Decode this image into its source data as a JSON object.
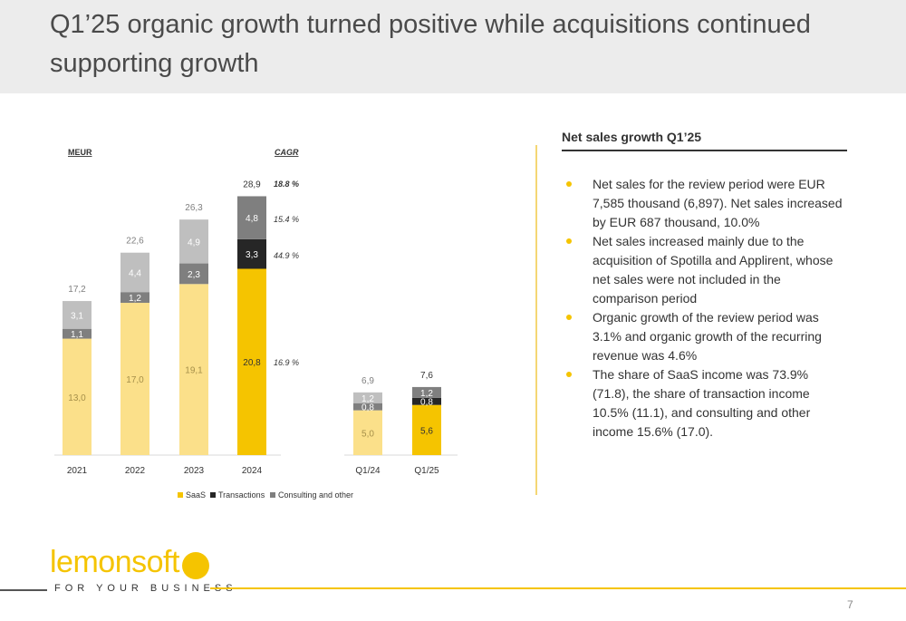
{
  "title": "Q1’25 organic growth turned positive while acquisitions continued supporting growth",
  "panel": {
    "title": "Net sales growth Q1’25",
    "bullets": [
      "Net sales for the review period were EUR 7,585 thousand (6,897). Net sales increased by EUR 687 thousand, 10.0%",
      "Net sales increased mainly due to the acquisition of Spotilla and Applirent, whose net sales were not included in the comparison period",
      "Organic growth of the review period was 3.1% and organic growth of the recurring revenue was 4.6%",
      "The share of SaaS income was 73.9% (71.8), the share of transaction income 10.5% (11.1), and consulting and other income 15.6% (17.0)."
    ]
  },
  "logo": {
    "brand": "lemonsoft",
    "tagline": "FOR YOUR BUSINESS"
  },
  "page_number": "7",
  "colors": {
    "saas_light": "#fbe08a",
    "saas_dark": "#f5c400",
    "transactions_light": "#7f7f7f",
    "transactions_dark": "#262626",
    "consulting_light": "#bfbfbf",
    "consulting_dark": "#7f7f7f"
  },
  "chart_data": {
    "type": "bar",
    "stacked": true,
    "unit_label": "MEUR",
    "cagr_label": "CAGR",
    "categories": [
      "2021",
      "2022",
      "2023",
      "2024",
      "Q1/24",
      "Q1/25"
    ],
    "series": [
      {
        "name": "SaaS",
        "values": [
          13.0,
          17.0,
          19.1,
          20.8,
          5.0,
          5.6
        ],
        "labels": [
          "13,0",
          "17,0",
          "19,1",
          "20,8",
          "5,0",
          "5,6"
        ]
      },
      {
        "name": "Transactions",
        "values": [
          1.1,
          1.2,
          2.3,
          3.3,
          0.8,
          0.8
        ],
        "labels": [
          "1,1",
          "1,2",
          "2,3",
          "3,3",
          "0,8",
          "0,8"
        ]
      },
      {
        "name": "Consulting and other",
        "values": [
          3.1,
          4.4,
          4.9,
          4.8,
          1.2,
          1.2
        ],
        "labels": [
          "3,1",
          "4,4",
          "4,9",
          "4,8",
          "1,2",
          "1,2"
        ]
      }
    ],
    "totals": [
      "17,2",
      "22,6",
      "26,3",
      "28,9",
      "6,9",
      "7,6"
    ],
    "highlighted": [
      "2024",
      "Q1/25"
    ],
    "cagr": {
      "total": "18.8 %",
      "consulting": "15.4 %",
      "transactions": "44.9 %",
      "saas": "16.9 %"
    },
    "legend": "bottom"
  }
}
